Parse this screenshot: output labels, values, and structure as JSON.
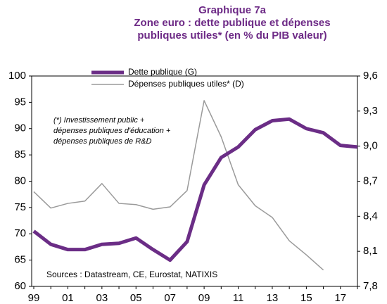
{
  "chart_data": {
    "type": "line",
    "title": [
      "Graphique 7a",
      "Zone euro : dette publique et dépenses",
      "publiques utiles* (en % du PIB valeur)"
    ],
    "categories": [
      "99",
      null,
      "01",
      null,
      "03",
      null,
      "05",
      null,
      "07",
      null,
      "09",
      null,
      "11",
      null,
      "13",
      null,
      "15",
      null,
      "17",
      null
    ],
    "series": [
      {
        "name": "Dette publique (G)",
        "color": "#6b2d86",
        "axis": "y",
        "values": [
          70.5,
          68,
          67,
          67,
          68,
          68.2,
          69.2,
          67,
          65,
          68.5,
          79.3,
          84.5,
          86.5,
          89.8,
          91.5,
          91.8,
          90,
          89.2,
          86.8,
          86.5
        ]
      },
      {
        "name": "Dépenses publiques utiles* (D)",
        "color": "#9a9a9a",
        "axis": "y2",
        "values": [
          8.61,
          8.47,
          8.51,
          8.53,
          8.68,
          8.51,
          8.5,
          8.46,
          8.48,
          8.62,
          9.39,
          9.08,
          8.67,
          8.49,
          8.39,
          8.19,
          8.07,
          7.94,
          null,
          null
        ]
      }
    ],
    "ylim": [
      60,
      100
    ],
    "yticks": [
      60,
      65,
      70,
      75,
      80,
      85,
      90,
      95,
      100
    ],
    "y2lim": [
      7.8,
      9.6
    ],
    "y2ticks": [
      {
        "value": 7.8,
        "label": "7,8"
      },
      {
        "value": 8.1,
        "label": "8,1"
      },
      {
        "value": 8.4,
        "label": "8,4"
      },
      {
        "value": 8.7,
        "label": "8,7"
      },
      {
        "value": 9.0,
        "label": "9,0"
      },
      {
        "value": 9.3,
        "label": "9,3"
      },
      {
        "value": 9.6,
        "label": "9,6"
      }
    ],
    "annotations": [
      "(*) Investissement public +",
      "dépenses publiques d'éducation +",
      "dépenses publiques de R&D",
      "Sources : Datastream, CE, Eurostat, NATIXIS"
    ]
  }
}
